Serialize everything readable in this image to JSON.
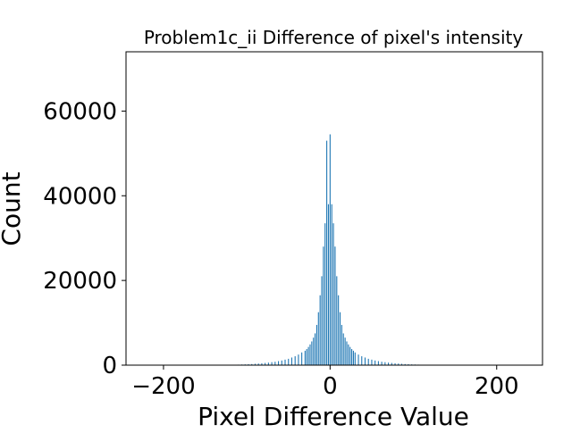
{
  "chart_data": {
    "type": "bar",
    "title": "Problem1c_ii Difference of pixel's intensity",
    "xlabel": "Pixel Difference Value",
    "ylabel": "Count",
    "xlim": [
      -245,
      255
    ],
    "ylim": [
      0,
      74000
    ],
    "xticks": [
      -200,
      0,
      200
    ],
    "yticks": [
      0,
      20000,
      40000,
      60000
    ],
    "grid": false,
    "color": "#1f77b4",
    "x": [
      -110,
      -106,
      -102,
      -98,
      -94,
      -90,
      -86,
      -82,
      -78,
      -74,
      -70,
      -66,
      -62,
      -58,
      -54,
      -50,
      -46,
      -42,
      -38,
      -34,
      -30,
      -28,
      -26,
      -24,
      -22,
      -20,
      -18,
      -16,
      -14,
      -12,
      -10,
      -8,
      -6,
      -4,
      -2,
      0,
      2,
      4,
      6,
      8,
      10,
      12,
      14,
      16,
      18,
      20,
      22,
      24,
      26,
      28,
      30,
      34,
      38,
      42,
      46,
      50,
      54,
      58,
      62,
      66,
      70,
      74,
      78,
      82,
      86,
      90,
      94,
      98,
      102,
      106,
      110
    ],
    "values": [
      120,
      150,
      180,
      220,
      260,
      320,
      380,
      450,
      520,
      600,
      700,
      800,
      950,
      1100,
      1300,
      1500,
      1800,
      2100,
      2500,
      3000,
      3400,
      3800,
      4300,
      4900,
      5600,
      6500,
      7500,
      9500,
      12500,
      16500,
      21000,
      28000,
      33500,
      53000,
      38000,
      54500,
      38000,
      33500,
      28000,
      21000,
      16500,
      12500,
      9500,
      7500,
      6500,
      5600,
      4900,
      4300,
      3800,
      3400,
      3000,
      2500,
      2100,
      1800,
      1500,
      1300,
      1100,
      950,
      800,
      700,
      600,
      520,
      450,
      380,
      320,
      260,
      220,
      180,
      150,
      120,
      100
    ]
  }
}
